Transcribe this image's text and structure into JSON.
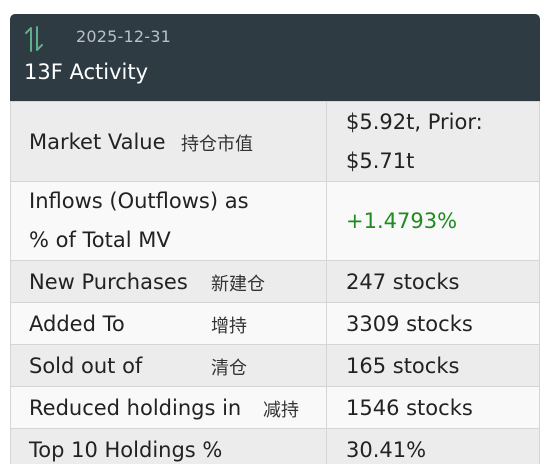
{
  "header": {
    "date": "2025-12-31",
    "title": "13F Activity",
    "icon": "up-down-arrows-icon",
    "icon_color": "#5fb08a",
    "background": "#2e3b42"
  },
  "rows": [
    {
      "label": "Market Value",
      "label_cn": "持仓市值",
      "value_line1": "$5.92t, Prior:",
      "value_line2": "$5.71t"
    },
    {
      "label_line1": "Inflows (Outflows) as",
      "label_line2": "% of Total MV",
      "value": "+1.4793%",
      "value_color": "#1f8a1f"
    },
    {
      "label": "New Purchases",
      "label_cn": "新建仓",
      "value": "247 stocks"
    },
    {
      "label": "Added To",
      "label_cn": "增持",
      "value": "3309 stocks"
    },
    {
      "label": "Sold out of",
      "label_cn": "清仓",
      "value": "165 stocks"
    },
    {
      "label": "Reduced holdings in",
      "label_cn": "减持",
      "value": "1546 stocks"
    },
    {
      "label": "Top 10 Holdings %",
      "value": "30.41%"
    }
  ]
}
